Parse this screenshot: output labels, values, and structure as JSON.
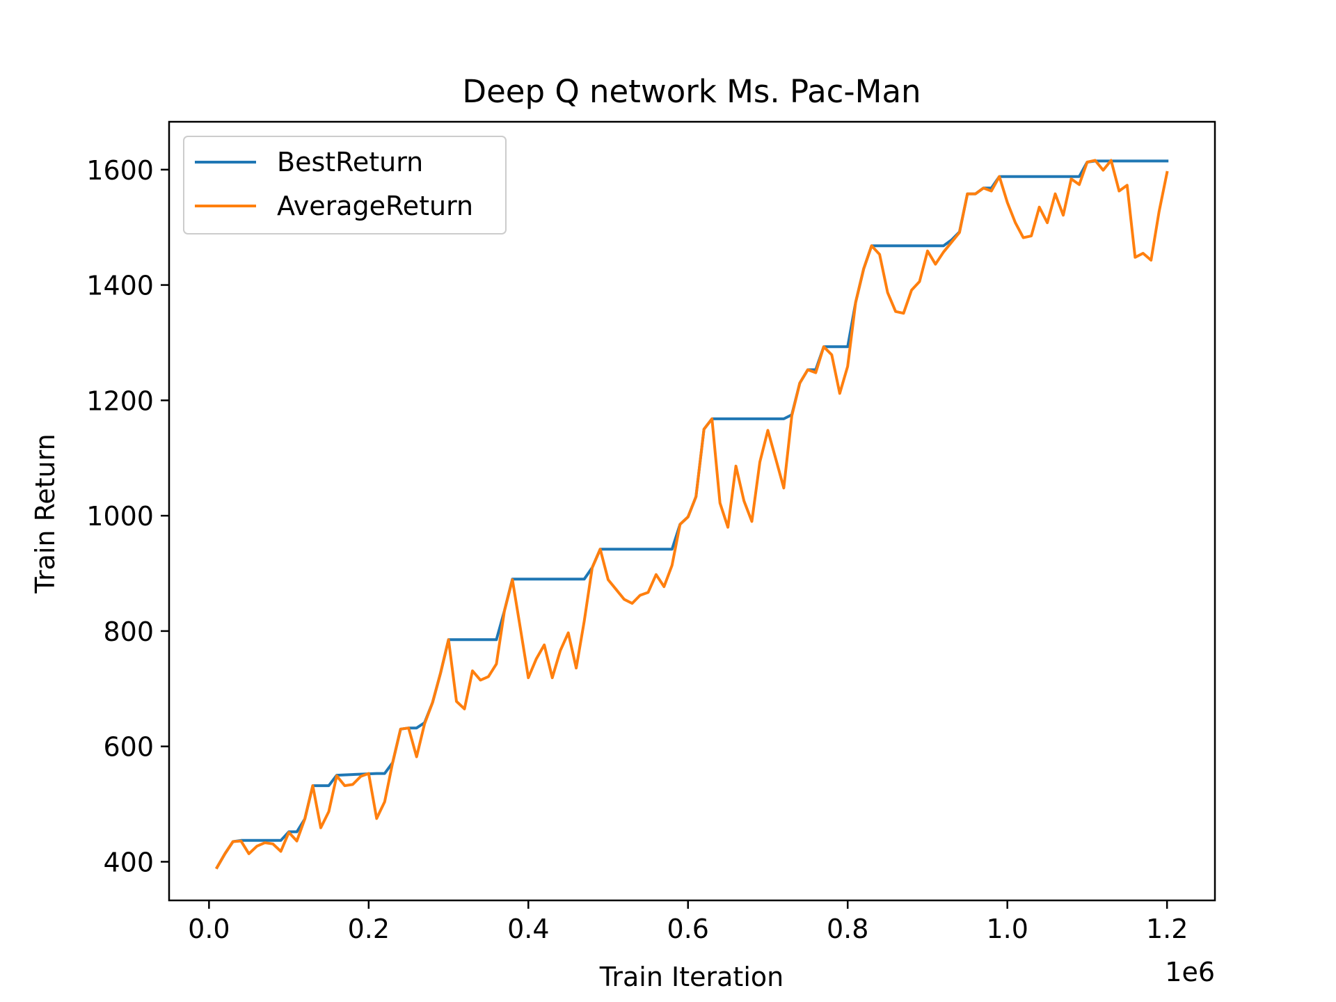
{
  "chart_data": {
    "type": "line",
    "title": "Deep Q network Ms. Pac-Man",
    "xlabel": "Train Iteration",
    "ylabel": "Train Return",
    "x_offset_label": "1e6",
    "xlim": [
      -0.05,
      1.26
    ],
    "ylim": [
      333,
      1683
    ],
    "xticks": [
      0.0,
      0.2,
      0.4,
      0.6,
      0.8,
      1.0,
      1.2
    ],
    "xtick_labels": [
      "0.0",
      "0.2",
      "0.4",
      "0.6",
      "0.8",
      "1.0",
      "1.2"
    ],
    "yticks": [
      400,
      600,
      800,
      1000,
      1200,
      1400,
      1600
    ],
    "ytick_labels": [
      "400",
      "600",
      "800",
      "1000",
      "1200",
      "1400",
      "1600"
    ],
    "grid": false,
    "legend_position": "upper-left",
    "series": [
      {
        "name": "BestReturn",
        "color": "#1f77b4",
        "points": [
          [
            0.01,
            390
          ],
          [
            0.02,
            414
          ],
          [
            0.03,
            435
          ],
          [
            0.04,
            437
          ],
          [
            0.09,
            437
          ],
          [
            0.1,
            452
          ],
          [
            0.11,
            452
          ],
          [
            0.12,
            474
          ],
          [
            0.13,
            532
          ],
          [
            0.15,
            532
          ],
          [
            0.16,
            550
          ],
          [
            0.21,
            553
          ],
          [
            0.22,
            553
          ],
          [
            0.23,
            572
          ],
          [
            0.24,
            630
          ],
          [
            0.25,
            632
          ],
          [
            0.26,
            632
          ],
          [
            0.27,
            641
          ],
          [
            0.28,
            676
          ],
          [
            0.29,
            727
          ],
          [
            0.3,
            785
          ],
          [
            0.36,
            785
          ],
          [
            0.37,
            835
          ],
          [
            0.38,
            890
          ],
          [
            0.47,
            890
          ],
          [
            0.48,
            910
          ],
          [
            0.49,
            942
          ],
          [
            0.58,
            942
          ],
          [
            0.59,
            985
          ],
          [
            0.6,
            998
          ],
          [
            0.61,
            1033
          ],
          [
            0.62,
            1150
          ],
          [
            0.63,
            1168
          ],
          [
            0.72,
            1168
          ],
          [
            0.73,
            1175
          ],
          [
            0.74,
            1230
          ],
          [
            0.75,
            1253
          ],
          [
            0.76,
            1253
          ],
          [
            0.77,
            1293
          ],
          [
            0.8,
            1293
          ],
          [
            0.81,
            1370
          ],
          [
            0.82,
            1428
          ],
          [
            0.83,
            1468
          ],
          [
            0.92,
            1468
          ],
          [
            0.93,
            1478
          ],
          [
            0.94,
            1492
          ],
          [
            0.95,
            1558
          ],
          [
            0.96,
            1558
          ],
          [
            0.97,
            1568
          ],
          [
            0.98,
            1568
          ],
          [
            0.99,
            1588
          ],
          [
            1.09,
            1588
          ],
          [
            1.1,
            1613
          ],
          [
            1.11,
            1615
          ],
          [
            1.2,
            1615
          ]
        ]
      },
      {
        "name": "AverageReturn",
        "color": "#ff7f0e",
        "points": [
          [
            0.01,
            390
          ],
          [
            0.02,
            414
          ],
          [
            0.03,
            435
          ],
          [
            0.04,
            436
          ],
          [
            0.05,
            414
          ],
          [
            0.06,
            427
          ],
          [
            0.07,
            433
          ],
          [
            0.08,
            431
          ],
          [
            0.09,
            418
          ],
          [
            0.1,
            451
          ],
          [
            0.11,
            436
          ],
          [
            0.12,
            474
          ],
          [
            0.13,
            532
          ],
          [
            0.14,
            459
          ],
          [
            0.15,
            487
          ],
          [
            0.16,
            549
          ],
          [
            0.17,
            532
          ],
          [
            0.18,
            534
          ],
          [
            0.19,
            548
          ],
          [
            0.2,
            553
          ],
          [
            0.21,
            475
          ],
          [
            0.22,
            504
          ],
          [
            0.23,
            572
          ],
          [
            0.24,
            630
          ],
          [
            0.25,
            632
          ],
          [
            0.26,
            582
          ],
          [
            0.27,
            639
          ],
          [
            0.28,
            676
          ],
          [
            0.29,
            727
          ],
          [
            0.3,
            785
          ],
          [
            0.31,
            678
          ],
          [
            0.32,
            665
          ],
          [
            0.33,
            731
          ],
          [
            0.34,
            715
          ],
          [
            0.35,
            721
          ],
          [
            0.36,
            743
          ],
          [
            0.37,
            835
          ],
          [
            0.38,
            889
          ],
          [
            0.39,
            805
          ],
          [
            0.4,
            719
          ],
          [
            0.41,
            752
          ],
          [
            0.42,
            776
          ],
          [
            0.43,
            719
          ],
          [
            0.44,
            766
          ],
          [
            0.45,
            797
          ],
          [
            0.46,
            736
          ],
          [
            0.47,
            817
          ],
          [
            0.48,
            910
          ],
          [
            0.49,
            942
          ],
          [
            0.5,
            889
          ],
          [
            0.51,
            872
          ],
          [
            0.52,
            855
          ],
          [
            0.53,
            848
          ],
          [
            0.54,
            862
          ],
          [
            0.55,
            867
          ],
          [
            0.56,
            898
          ],
          [
            0.57,
            877
          ],
          [
            0.58,
            914
          ],
          [
            0.59,
            985
          ],
          [
            0.6,
            998
          ],
          [
            0.61,
            1033
          ],
          [
            0.62,
            1150
          ],
          [
            0.63,
            1168
          ],
          [
            0.64,
            1022
          ],
          [
            0.65,
            980
          ],
          [
            0.66,
            1086
          ],
          [
            0.67,
            1026
          ],
          [
            0.68,
            990
          ],
          [
            0.69,
            1093
          ],
          [
            0.7,
            1148
          ],
          [
            0.71,
            1098
          ],
          [
            0.72,
            1048
          ],
          [
            0.73,
            1173
          ],
          [
            0.74,
            1230
          ],
          [
            0.75,
            1253
          ],
          [
            0.76,
            1248
          ],
          [
            0.77,
            1293
          ],
          [
            0.78,
            1279
          ],
          [
            0.79,
            1212
          ],
          [
            0.8,
            1259
          ],
          [
            0.81,
            1370
          ],
          [
            0.82,
            1428
          ],
          [
            0.83,
            1468
          ],
          [
            0.84,
            1453
          ],
          [
            0.85,
            1387
          ],
          [
            0.86,
            1354
          ],
          [
            0.87,
            1351
          ],
          [
            0.88,
            1391
          ],
          [
            0.89,
            1406
          ],
          [
            0.9,
            1459
          ],
          [
            0.91,
            1436
          ],
          [
            0.92,
            1457
          ],
          [
            0.93,
            1474
          ],
          [
            0.94,
            1491
          ],
          [
            0.95,
            1558
          ],
          [
            0.96,
            1558
          ],
          [
            0.97,
            1568
          ],
          [
            0.98,
            1563
          ],
          [
            0.99,
            1588
          ],
          [
            1.0,
            1543
          ],
          [
            1.01,
            1508
          ],
          [
            1.02,
            1482
          ],
          [
            1.03,
            1485
          ],
          [
            1.04,
            1535
          ],
          [
            1.05,
            1508
          ],
          [
            1.06,
            1558
          ],
          [
            1.07,
            1521
          ],
          [
            1.08,
            1584
          ],
          [
            1.09,
            1574
          ],
          [
            1.1,
            1613
          ],
          [
            1.11,
            1616
          ],
          [
            1.12,
            1599
          ],
          [
            1.13,
            1616
          ],
          [
            1.14,
            1563
          ],
          [
            1.15,
            1573
          ],
          [
            1.16,
            1448
          ],
          [
            1.17,
            1455
          ],
          [
            1.18,
            1443
          ],
          [
            1.19,
            1527
          ],
          [
            1.2,
            1595
          ]
        ]
      }
    ]
  }
}
